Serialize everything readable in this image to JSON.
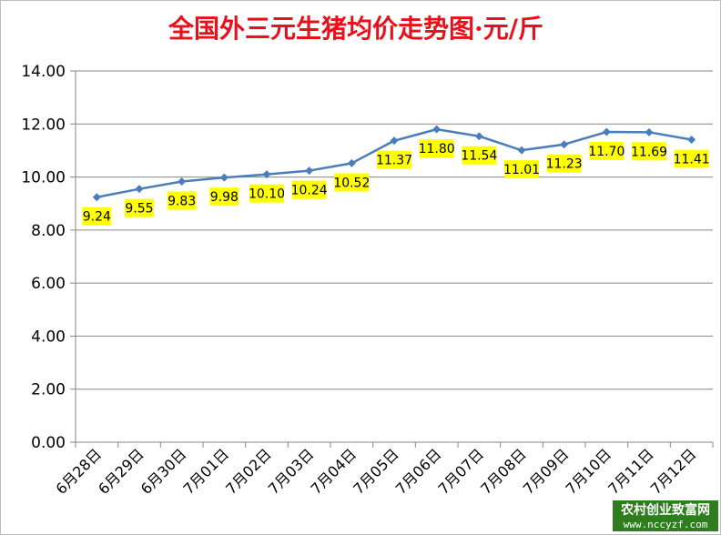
{
  "chart_data": {
    "type": "line",
    "title": "全国外三元生猪均价走势图·元/斤",
    "xlabel": "",
    "ylabel": "",
    "categories": [
      "6月28日",
      "6月29日",
      "6月30日",
      "7月01日",
      "7月02日",
      "7月03日",
      "7月04日",
      "7月05日",
      "7月06日",
      "7月07日",
      "7月08日",
      "7月09日",
      "7月10日",
      "7月11日",
      "7月12日"
    ],
    "series": [
      {
        "values": [
          9.24,
          9.55,
          9.83,
          9.98,
          10.1,
          10.24,
          10.52,
          11.37,
          11.8,
          11.54,
          11.01,
          11.23,
          11.7,
          11.69,
          11.41
        ],
        "labels": [
          "9.24",
          "9.55",
          "9.83",
          "9.98",
          "10.10",
          "10.24",
          "10.52",
          "11.37",
          "11.80",
          "11.54",
          "11.01",
          "11.23",
          "11.70",
          "11.69",
          "11.41"
        ],
        "color": "#4a7ebb"
      }
    ],
    "ylim": [
      0,
      14
    ],
    "yticks": [
      "0.00",
      "2.00",
      "4.00",
      "6.00",
      "8.00",
      "10.00",
      "12.00",
      "14.00"
    ],
    "grid": true,
    "legend": "none",
    "label_background": "#ffff00"
  },
  "watermark": {
    "line1": "农村创业致富网",
    "line2": "www.nccyzf.com",
    "background": "#2e7d1f"
  }
}
